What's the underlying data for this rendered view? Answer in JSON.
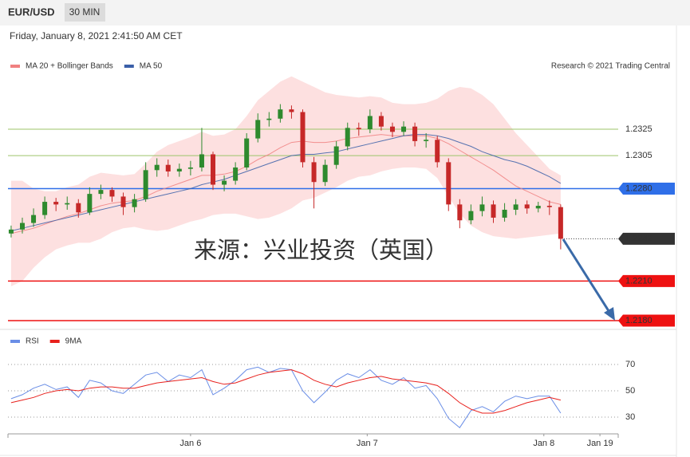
{
  "header": {
    "symbol": "EUR/USD",
    "interval": "30 MIN",
    "timestamp": "Friday, January 8, 2021 2:41:50 AM CET"
  },
  "chart_data": [
    {
      "type": "candlestick",
      "source": "Research © 2021 Trading Central",
      "watermark": "来源：兴业投资（英国）",
      "up_color": "#2e8a2e",
      "down_color": "#c62828",
      "xlim": [
        -0.28,
        54.13
      ],
      "ylim": [
        1.2175,
        1.2365
      ],
      "ohlc": [
        [
          1.2246,
          1.2252,
          1.2243,
          1.2249
        ],
        [
          1.2249,
          1.2258,
          1.2246,
          1.2254
        ],
        [
          1.2254,
          1.2265,
          1.2251,
          1.226
        ],
        [
          1.226,
          1.2274,
          1.2257,
          1.227
        ],
        [
          1.227,
          1.2273,
          1.2263,
          1.2268
        ],
        [
          1.2268,
          1.2274,
          1.2264,
          1.2269
        ],
        [
          1.2269,
          1.2272,
          1.2258,
          1.2262
        ],
        [
          1.2262,
          1.2281,
          1.226,
          1.2276
        ],
        [
          1.2276,
          1.2283,
          1.2272,
          1.2279
        ],
        [
          1.2279,
          1.2281,
          1.227,
          1.2274
        ],
        [
          1.2274,
          1.2277,
          1.226,
          1.2266
        ],
        [
          1.2266,
          1.2276,
          1.2262,
          1.2272
        ],
        [
          1.2272,
          1.23,
          1.227,
          1.2294
        ],
        [
          1.2294,
          1.2303,
          1.2289,
          1.2298
        ],
        [
          1.2298,
          1.2302,
          1.2289,
          1.2293
        ],
        [
          1.2293,
          1.2299,
          1.2289,
          1.2295
        ],
        [
          1.2295,
          1.2301,
          1.229,
          1.2296
        ],
        [
          1.2296,
          1.2326,
          1.2293,
          1.2306
        ],
        [
          1.2306,
          1.2308,
          1.2279,
          1.2283
        ],
        [
          1.2283,
          1.229,
          1.2278,
          1.2286
        ],
        [
          1.2286,
          1.23,
          1.2283,
          1.2296
        ],
        [
          1.2296,
          1.2322,
          1.2294,
          1.2318
        ],
        [
          1.2318,
          1.2337,
          1.2315,
          1.2332
        ],
        [
          1.2332,
          1.2338,
          1.2327,
          1.2333
        ],
        [
          1.2333,
          1.2344,
          1.233,
          1.234
        ],
        [
          1.234,
          1.2343,
          1.2333,
          1.2338
        ],
        [
          1.2338,
          1.234,
          1.2296,
          1.23
        ],
        [
          1.23,
          1.2304,
          1.2265,
          1.2285
        ],
        [
          1.2285,
          1.2302,
          1.2282,
          1.2298
        ],
        [
          1.2298,
          1.2316,
          1.2295,
          1.2312
        ],
        [
          1.2312,
          1.233,
          1.2309,
          1.2326
        ],
        [
          1.2326,
          1.233,
          1.232,
          1.2325
        ],
        [
          1.2325,
          1.234,
          1.2322,
          1.2335
        ],
        [
          1.2335,
          1.2338,
          1.2324,
          1.2327
        ],
        [
          1.2327,
          1.233,
          1.2319,
          1.2323
        ],
        [
          1.2323,
          1.2331,
          1.232,
          1.2327
        ],
        [
          1.2327,
          1.233,
          1.2312,
          1.2316
        ],
        [
          1.2316,
          1.2322,
          1.2311,
          1.2317
        ],
        [
          1.2317,
          1.232,
          1.2296,
          1.23
        ],
        [
          1.23,
          1.2303,
          1.2263,
          1.2268
        ],
        [
          1.2268,
          1.2272,
          1.225,
          1.2256
        ],
        [
          1.2256,
          1.2268,
          1.2253,
          1.2263
        ],
        [
          1.2263,
          1.2274,
          1.2259,
          1.2268
        ],
        [
          1.2268,
          1.2271,
          1.2254,
          1.2258
        ],
        [
          1.2258,
          1.2269,
          1.2255,
          1.2264
        ],
        [
          1.2264,
          1.2272,
          1.226,
          1.2268
        ],
        [
          1.2268,
          1.2271,
          1.2261,
          1.2265
        ],
        [
          1.2265,
          1.227,
          1.2262,
          1.2267
        ],
        [
          1.2267,
          1.2271,
          1.226,
          1.2266
        ],
        [
          1.2266,
          1.2268,
          1.2234,
          1.2242
        ]
      ],
      "series": [
        {
          "name": "MA 20 + Bollinger Bands",
          "color": "#f08080",
          "band_color": "#fde0e0",
          "values": [
            1.2246,
            1.2248,
            1.225,
            1.2253,
            1.2256,
            1.2259,
            1.2261,
            1.2264,
            1.2267,
            1.2269,
            1.227,
            1.2271,
            1.2274,
            1.2278,
            1.2281,
            1.2284,
            1.2287,
            1.229,
            1.229,
            1.2291,
            1.2293,
            1.2297,
            1.2302,
            1.2306,
            1.2311,
            1.2315,
            1.2316,
            1.2315,
            1.2315,
            1.2316,
            1.2318,
            1.2319,
            1.232,
            1.2321,
            1.232,
            1.232,
            1.232,
            1.232,
            1.2318,
            1.2314,
            1.2309,
            1.2304,
            1.2299,
            1.2294,
            1.2288,
            1.2282,
            1.2278,
            1.2274,
            1.227,
            1.2268
          ],
          "upper": [
            1.2286,
            1.2286,
            1.228,
            1.2278,
            1.2278,
            1.2281,
            1.2283,
            1.2289,
            1.2292,
            1.2291,
            1.229,
            1.2291,
            1.2299,
            1.2308,
            1.2313,
            1.2316,
            1.2319,
            1.2323,
            1.232,
            1.2321,
            1.2325,
            1.2335,
            1.2347,
            1.2354,
            1.2361,
            1.2365,
            1.2361,
            1.2357,
            1.2353,
            1.2351,
            1.235,
            1.2349,
            1.235,
            1.2349,
            1.2345,
            1.2344,
            1.2344,
            1.2345,
            1.2348,
            1.2354,
            1.2357,
            1.2356,
            1.2351,
            1.2344,
            1.2333,
            1.2322,
            1.2313,
            1.2304,
            1.2295,
            1.229
          ],
          "lower": [
            1.2206,
            1.221,
            1.222,
            1.2228,
            1.2234,
            1.2237,
            1.2239,
            1.2239,
            1.2242,
            1.2247,
            1.225,
            1.2251,
            1.2249,
            1.2248,
            1.2249,
            1.2252,
            1.2255,
            1.2257,
            1.226,
            1.2261,
            1.2261,
            1.2259,
            1.2257,
            1.2258,
            1.2261,
            1.2265,
            1.2271,
            1.2273,
            1.2277,
            1.2281,
            1.2286,
            1.2289,
            1.229,
            1.2293,
            1.2295,
            1.2296,
            1.2296,
            1.2295,
            1.2288,
            1.2274,
            1.2261,
            1.2252,
            1.2247,
            1.2244,
            1.2243,
            1.2242,
            1.2243,
            1.2244,
            1.2245,
            1.2246
          ]
        },
        {
          "name": "MA 50",
          "color": "#3a5fa8",
          "values": [
            1.2248,
            1.225,
            1.2252,
            1.2254,
            1.2256,
            1.2258,
            1.226,
            1.2262,
            1.2264,
            1.2266,
            1.2268,
            1.227,
            1.2272,
            1.2274,
            1.2276,
            1.2278,
            1.228,
            1.2283,
            1.2285,
            1.2287,
            1.229,
            1.2293,
            1.2296,
            1.2299,
            1.2302,
            1.2305,
            1.2306,
            1.2306,
            1.2307,
            1.2308,
            1.231,
            1.2312,
            1.2314,
            1.2316,
            1.2318,
            1.232,
            1.2321,
            1.2321,
            1.232,
            1.2318,
            1.2315,
            1.2312,
            1.2308,
            1.2305,
            1.2302,
            1.23,
            1.2297,
            1.2293,
            1.2289,
            1.2284
          ]
        }
      ],
      "levels": [
        {
          "value": 1.2325,
          "color": "#9dc46a",
          "text_color": "#5a9a1a"
        },
        {
          "value": 1.2305,
          "color": "#9dc46a",
          "text_color": "#5a9a1a"
        },
        {
          "value": 1.228,
          "label": "1.2280",
          "color": "#2f6fe8",
          "box": true
        },
        {
          "value": 1.221,
          "label": "1.2210",
          "color": "#ee1111",
          "box": true
        },
        {
          "value": 1.218,
          "label": "1.2180",
          "color": "#ee1111",
          "box": true
        }
      ],
      "last_price": 1.2242
    },
    {
      "type": "line",
      "xlim": [
        -0.28,
        54.13
      ],
      "ylim": [
        20,
        80
      ],
      "yticks": [
        30,
        50,
        70
      ],
      "xticks": [
        {
          "value": 16,
          "label": "Jan 6"
        },
        {
          "value": 31.75,
          "label": "Jan 7"
        },
        {
          "value": 47.5,
          "label": "Jan 8"
        },
        {
          "value": 52.5,
          "label": "Jan 19"
        }
      ],
      "series": [
        {
          "name": "RSI",
          "color": "#6a8ee6",
          "values": [
            44,
            47,
            52,
            55,
            51,
            53,
            45,
            58,
            56,
            50,
            48,
            55,
            62,
            64,
            57,
            62,
            60,
            66,
            47,
            52,
            58,
            66,
            68,
            64,
            67,
            66,
            50,
            41,
            49,
            58,
            63,
            60,
            66,
            58,
            55,
            60,
            52,
            54,
            44,
            29,
            22,
            35,
            38,
            34,
            42,
            46,
            44,
            46,
            46,
            33
          ]
        },
        {
          "name": "9MA",
          "color": "#e8201c",
          "values": [
            41,
            43,
            45,
            48,
            50,
            51,
            50,
            52,
            53,
            53,
            52,
            52,
            54,
            56,
            57,
            58,
            59,
            60,
            57,
            55,
            56,
            59,
            62,
            64,
            65,
            66,
            63,
            58,
            55,
            53,
            56,
            58,
            60,
            61,
            59,
            58,
            57,
            56,
            54,
            48,
            41,
            36,
            33,
            33,
            35,
            38,
            41,
            43,
            45,
            43
          ]
        }
      ]
    }
  ]
}
